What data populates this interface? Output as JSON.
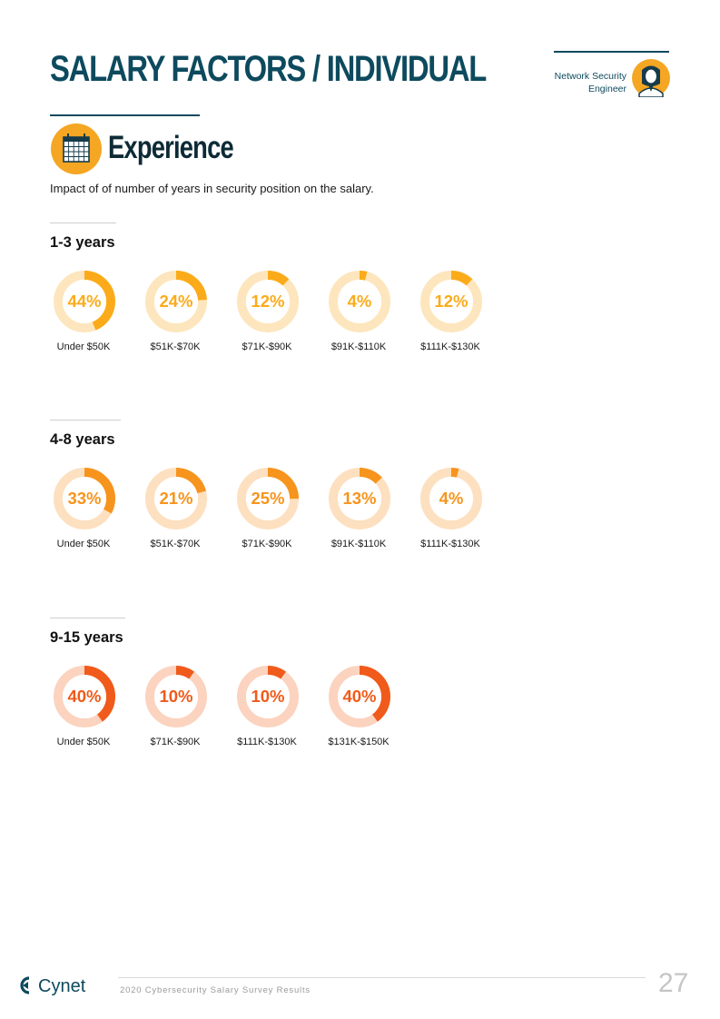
{
  "header": {
    "title": "SALARY FACTORS / INDIVIDUAL",
    "role_line1": "Network Security",
    "role_line2": "Engineer"
  },
  "section": {
    "title": "Experience",
    "subtitle": "Impact of of number of years in security position on the salary."
  },
  "colors": {
    "title": "#0d4a5e",
    "group1": "#fbab1a",
    "group2": "#f7941d",
    "group3": "#f05a1a"
  },
  "groups": [
    {
      "title": "1-3 years",
      "color": "#fbab1a",
      "track": "#fde6bd",
      "items": [
        {
          "pct": "44%",
          "value": 44,
          "label": "Under $50K"
        },
        {
          "pct": "24%",
          "value": 24,
          "label": "$51K-$70K"
        },
        {
          "pct": "12%",
          "value": 12,
          "label": "$71K-$90K"
        },
        {
          "pct": "4%",
          "value": 4,
          "label": "$91K-$110K"
        },
        {
          "pct": "12%",
          "value": 12,
          "label": "$111K-$130K"
        }
      ]
    },
    {
      "title": "4-8 years",
      "color": "#f7941d",
      "track": "#fde0c0",
      "items": [
        {
          "pct": "33%",
          "value": 33,
          "label": "Under $50K"
        },
        {
          "pct": "21%",
          "value": 21,
          "label": "$51K-$70K"
        },
        {
          "pct": "25%",
          "value": 25,
          "label": "$71K-$90K"
        },
        {
          "pct": "13%",
          "value": 13,
          "label": "$91K-$110K"
        },
        {
          "pct": "4%",
          "value": 4,
          "label": "$111K-$130K"
        }
      ]
    },
    {
      "title": "9-15 years",
      "color": "#f05a1a",
      "track": "#fbd3bf",
      "items": [
        {
          "pct": "40%",
          "value": 40,
          "label": "Under $50K"
        },
        {
          "pct": "10%",
          "value": 10,
          "label": "$71K-$90K"
        },
        {
          "pct": "10%",
          "value": 10,
          "label": "$111K-$130K"
        },
        {
          "pct": "40%",
          "value": 40,
          "label": "$131K-$150K"
        }
      ]
    }
  ],
  "footer": {
    "brand": "Cynet",
    "text": "2020 Cybersecurity Salary Survey Results",
    "page": "27"
  }
}
